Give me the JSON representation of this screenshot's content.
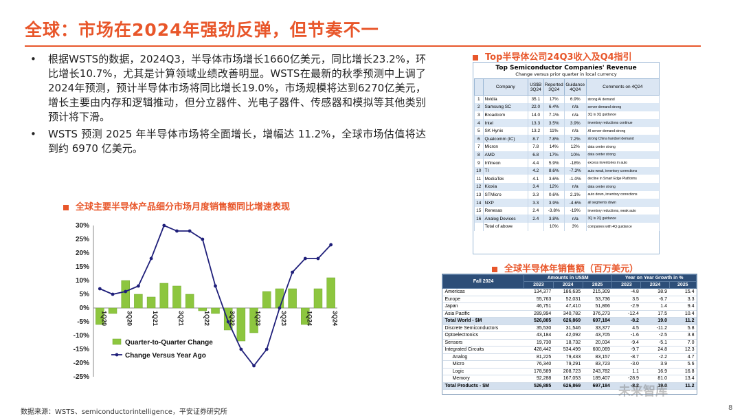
{
  "title": "全球：市场在2024年强劲反弹，但节奏不一",
  "bullets": [
    "根据WSTS的数据，2024Q3，半导体市场增长1660亿美元，同比增长23.2%，环比增长10.7%，尤其是计算领域业绩改善明显。WSTS在最新的秋季预测中上调了2024年预测，预计半导体市场将同比增长19.0%，市场规模将达到6270亿美元，增长主要由内存和逻辑推动，但分立器件、光电子器件、传感器和模拟等其他类别预计将下滑。",
    "WSTS 预测 2025 年半导体市场将全面增长，增幅达 11.2%，全球市场估值将达到约 6970 亿美元。"
  ],
  "chart_heading": "全球主要半导体产品细分市场月度销售额同比增速表现",
  "table1_heading": "Top半导体公司24Q3收入及Q4指引",
  "table2_heading": "全球半导体年销售额（百万美元）",
  "source": "数据来源：WSTS、semiconductorintelligence，平安证券研究所",
  "page_number": "8",
  "watermark": "未来智库",
  "chart_data": {
    "type": "bar",
    "x": [
      "1Q20",
      "2Q20",
      "3Q20",
      "4Q20",
      "1Q21",
      "2Q21",
      "3Q21",
      "4Q21",
      "1Q22",
      "2Q22",
      "3Q22",
      "4Q22",
      "1Q23",
      "2Q23",
      "3Q23",
      "4Q23",
      "1Q24",
      "2Q24",
      "3Q24"
    ],
    "tick_labels": [
      "1Q20",
      "3Q20",
      "1Q21",
      "3Q21",
      "1Q22",
      "3Q22",
      "1Q23",
      "3Q23",
      "1Q24",
      "3Q24"
    ],
    "series": [
      {
        "name": "Quarter-to-Quarter Change",
        "type": "bar",
        "color": "#8dc63f",
        "values": [
          -6,
          -2,
          10,
          5,
          4,
          9,
          8,
          5,
          -1,
          -2,
          -8,
          -12,
          -9,
          6,
          7,
          7,
          -6,
          7,
          11
        ]
      },
      {
        "name": "Change Versus Year Ago",
        "type": "line",
        "color": "#1f1f7a",
        "values": [
          7,
          5,
          6,
          8,
          18,
          30,
          28,
          28,
          25,
          8,
          -5,
          -15,
          -21,
          -15,
          0,
          13,
          18,
          18,
          23
        ]
      }
    ],
    "ylim": [
      -25,
      30
    ],
    "yticks": [
      "30%",
      "25%",
      "20%",
      "15%",
      "10%",
      "5%",
      "0%",
      "-5%",
      "-10%",
      "-15%",
      "-20%",
      "-25%"
    ],
    "legend": "bottom-left"
  },
  "table1": {
    "title": "Top Semiconductor Companies' Revenue",
    "subtitle": "Change versus prior quarter in local currency",
    "headers": [
      "",
      "Company",
      "US$B 3Q24",
      "Reported 3Q24",
      "Guidance 4Q24",
      "Comments on 4Q24"
    ],
    "rows": [
      [
        "1",
        "Nvidia",
        "35.1",
        "17%",
        "6.9%",
        "strong AI demand"
      ],
      [
        "2",
        "Samsung SC",
        "22.0",
        "6.4%",
        "n/a",
        "server demand strong"
      ],
      [
        "3",
        "Broadcom",
        "14.0",
        "7.1%",
        "n/a",
        "3Q is 3Q guidance"
      ],
      [
        "4",
        "Intel",
        "13.3",
        "3.5%",
        "3.9%",
        "inventory reductions continue"
      ],
      [
        "5",
        "SK Hynix",
        "13.2",
        "11%",
        "n/a",
        "AI server demand strong"
      ],
      [
        "6",
        "Qualcomm (IC)",
        "8.7",
        "7.8%",
        "7.2%",
        "strong China handset demand"
      ],
      [
        "7",
        "Micron",
        "7.8",
        "14%",
        "12%",
        "data center strong"
      ],
      [
        "8",
        "AMD",
        "6.8",
        "17%",
        "10%",
        "data center strong"
      ],
      [
        "9",
        "Infineon",
        "4.4",
        "5.9%",
        "-18%",
        "excess inventories in auto"
      ],
      [
        "10",
        "TI",
        "4.2",
        "8.6%",
        "-7.3%",
        "auto weak, inventory corrections"
      ],
      [
        "11",
        "MediaTek",
        "4.1",
        "3.6%",
        "-1.0%",
        "decline in Smart Edge Platforms"
      ],
      [
        "12",
        "Kioxia",
        "3.4",
        "12%",
        "n/a",
        "data center strong"
      ],
      [
        "13",
        "STMicro",
        "3.3",
        "0.6%",
        "2.1%",
        "auto down, inventory corrections"
      ],
      [
        "14",
        "NXP",
        "3.3",
        "3.9%",
        "-4.6%",
        "all segments down"
      ],
      [
        "15",
        "Renesas",
        "2.4",
        "-3.8%",
        "-19%",
        "inventory reductions, weak auto"
      ],
      [
        "16",
        "Analog Devices",
        "2.4",
        "3.8%",
        "n/a",
        "3Q is 2Q guidance"
      ],
      [
        "",
        "Total of above",
        "",
        "10%",
        "3%",
        "companies with 4Q guidance"
      ]
    ]
  },
  "table2": {
    "header_left": "Fall 2024",
    "header_group1": "Amounts in US$M",
    "header_group2": "Year on Year Growth in %",
    "years": [
      "2023",
      "2024",
      "2025",
      "2023",
      "2024",
      "2025"
    ],
    "rows": [
      {
        "label": "Americas",
        "v": [
          "134,377",
          "186,635",
          "215,309",
          "-4.8",
          "38.9",
          "15.4"
        ],
        "type": "normal"
      },
      {
        "label": "Europe",
        "v": [
          "55,763",
          "52,031",
          "53,736",
          "3.5",
          "-6.7",
          "3.3"
        ],
        "type": "normal"
      },
      {
        "label": "Japan",
        "v": [
          "46,751",
          "47,410",
          "51,866",
          "-2.9",
          "1.4",
          "9.4"
        ],
        "type": "normal"
      },
      {
        "label": "Asia Pacific",
        "v": [
          "289,994",
          "340,782",
          "376,273",
          "-12.4",
          "17.5",
          "10.4"
        ],
        "type": "normal"
      },
      {
        "label": "Total World - $M",
        "v": [
          "526,885",
          "626,869",
          "697,184",
          "-8.2",
          "19.0",
          "11.2"
        ],
        "type": "tot"
      },
      {
        "label": "Discrete Semiconductors",
        "v": [
          "35,530",
          "31,546",
          "33,377",
          "4.5",
          "-11.2",
          "5.8"
        ],
        "type": "normal"
      },
      {
        "label": "Optoelectronics",
        "v": [
          "43,184",
          "42,092",
          "43,705",
          "-1.6",
          "-2.5",
          "3.8"
        ],
        "type": "normal"
      },
      {
        "label": "Sensors",
        "v": [
          "19,730",
          "18,732",
          "20,034",
          "-9.4",
          "-5.1",
          "7.0"
        ],
        "type": "normal"
      },
      {
        "label": "Integrated Circuits",
        "v": [
          "428,442",
          "534,499",
          "600,069",
          "-9.7",
          "24.8",
          "12.3"
        ],
        "type": "normal"
      },
      {
        "label": "Analog",
        "v": [
          "81,225",
          "79,433",
          "83,157",
          "-8.7",
          "-2.2",
          "4.7"
        ],
        "type": "ind"
      },
      {
        "label": "Micro",
        "v": [
          "76,340",
          "79,291",
          "83,723",
          "-3.0",
          "3.9",
          "5.6"
        ],
        "type": "ind"
      },
      {
        "label": "Logic",
        "v": [
          "178,589",
          "208,723",
          "243,782",
          "1.1",
          "16.9",
          "16.8"
        ],
        "type": "ind"
      },
      {
        "label": "Memory",
        "v": [
          "92,288",
          "167,053",
          "189,407",
          "-28.9",
          "81.0",
          "13.4"
        ],
        "type": "ind"
      },
      {
        "label": "Total Products - $M",
        "v": [
          "526,885",
          "626,869",
          "697,184",
          "-8.2",
          "19.0",
          "11.2"
        ],
        "type": "tot"
      }
    ]
  }
}
